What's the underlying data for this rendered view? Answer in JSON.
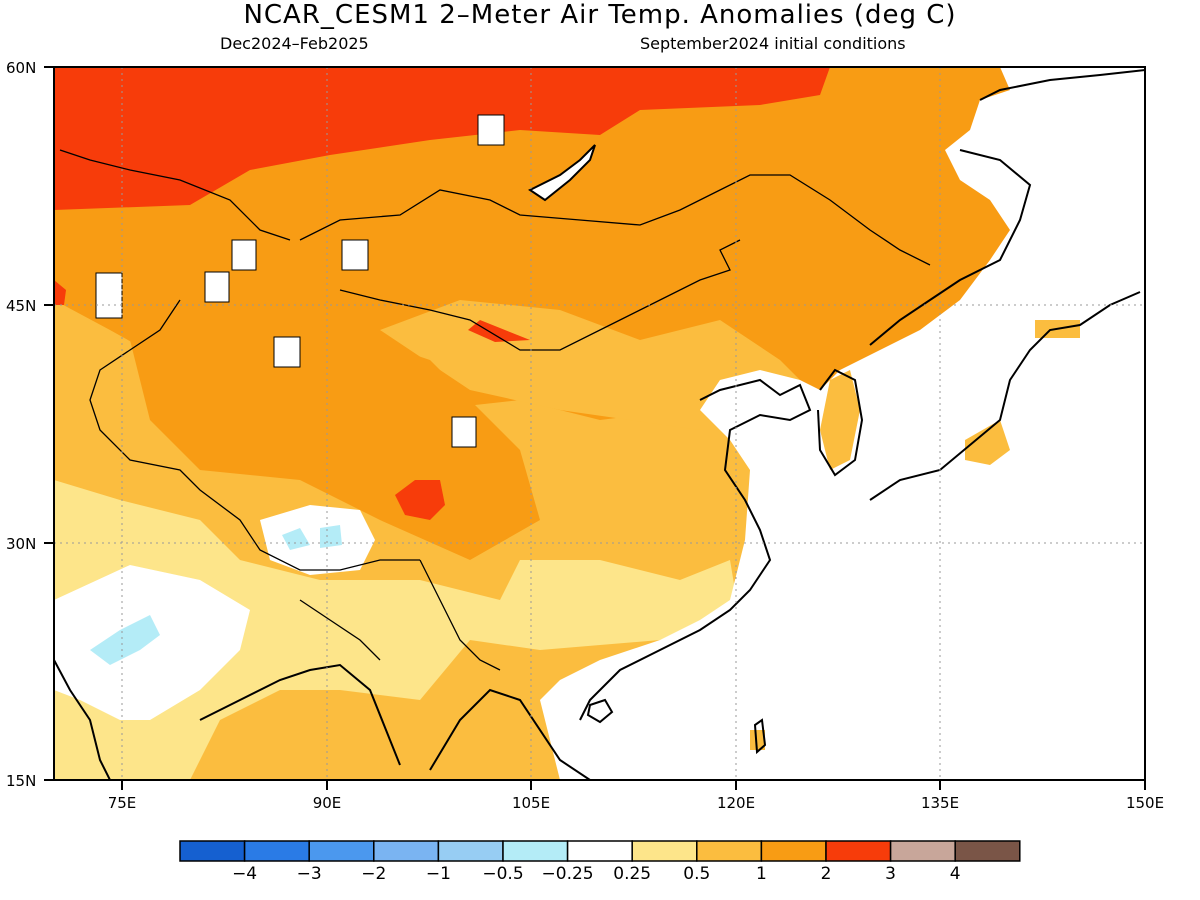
{
  "title": "NCAR_CESM1 2–Meter Air Temp. Anomalies (deg C)",
  "subtitle_left": "Dec2024–Feb2025",
  "subtitle_right": "September2024 initial conditions",
  "map": {
    "lon_range": [
      70,
      150
    ],
    "lat_range": [
      15,
      60
    ],
    "lat_ticks": [
      "15N",
      "30N",
      "45N",
      "60N"
    ],
    "lon_ticks": [
      "75E",
      "90E",
      "105E",
      "120E",
      "135E",
      "150E"
    ],
    "gridlines": "dotted"
  },
  "colorbar": {
    "labels": [
      "−4",
      "−3",
      "−2",
      "−1",
      "−0.5",
      "−0.25",
      "0.25",
      "0.5",
      "1",
      "2",
      "3",
      "4"
    ],
    "colors": [
      "#1560d0",
      "#2a7be6",
      "#4b98ee",
      "#7ab4f2",
      "#97cdf3",
      "#b4ecf7",
      "#ffffff",
      "#fde58a",
      "#fbbd3f",
      "#f89c14",
      "#f73c0a",
      "#c8a69a",
      "#7a5547"
    ]
  },
  "anomaly_colors": {
    "hot3": "#f73c0a",
    "warm2": "#f89c14",
    "warm1": "#fbbd3f",
    "mild": "#fde58a",
    "neutral": "#ffffff",
    "cool": "#b4ecf7"
  }
}
